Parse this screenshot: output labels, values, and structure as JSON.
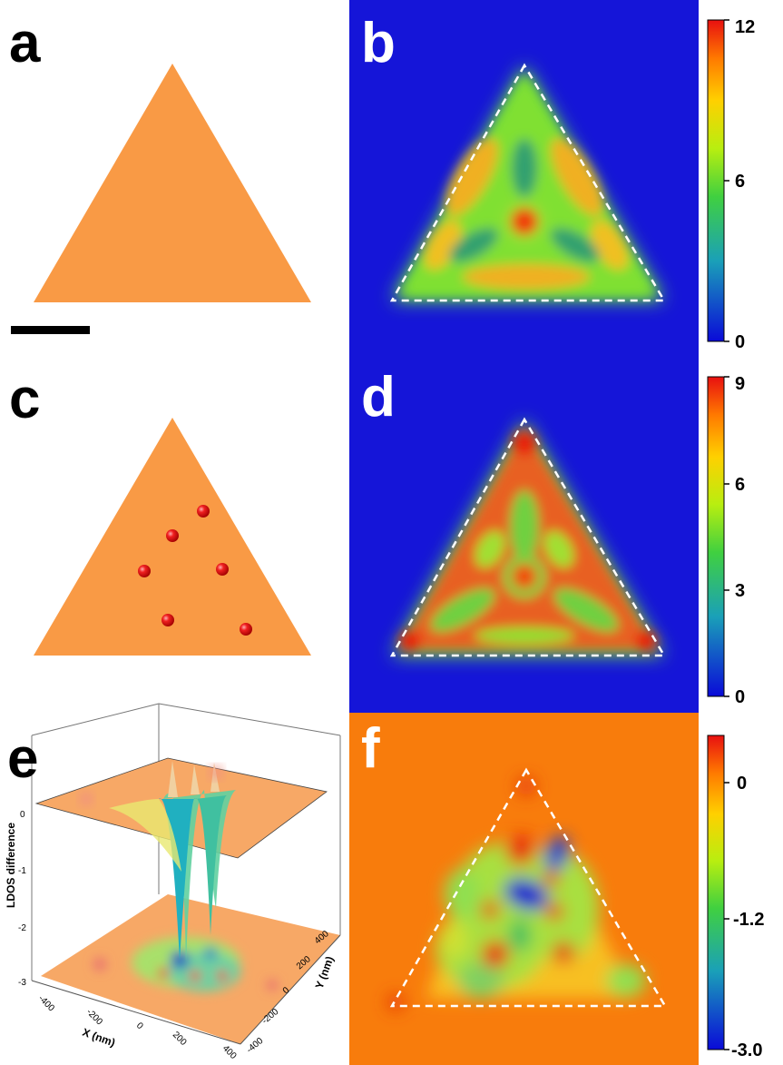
{
  "panels": {
    "a": {
      "label": "a"
    },
    "b": {
      "label": "b"
    },
    "c": {
      "label": "c"
    },
    "d": {
      "label": "d"
    },
    "e": {
      "label": "e"
    },
    "f": {
      "label": "f"
    }
  },
  "colorbars": {
    "b": {
      "ticks": [
        "12",
        "6",
        "0"
      ],
      "range": [
        0,
        12
      ]
    },
    "d": {
      "ticks": [
        "9",
        "6",
        "3",
        "0"
      ],
      "range": [
        0,
        9
      ]
    },
    "f": {
      "ticks": [
        "0",
        "-1.2",
        "-3.0"
      ],
      "range": [
        -3.0,
        0.5
      ]
    }
  },
  "panel_e": {
    "z_ticks": [
      "0",
      "-1",
      "-2",
      "-3"
    ],
    "z_label": "LDOS difference",
    "x_ticks": [
      "-400",
      "-200",
      "0",
      "200",
      "400"
    ],
    "x_label": "X (nm)",
    "y_ticks": [
      "400",
      "200",
      "0",
      "-200",
      "-400"
    ],
    "y_label": "Y (nm)"
  },
  "colors": {
    "triangle": "#f99a45",
    "map_bg_blue": "#1515d8",
    "map_bg_orange": "#f87c0c",
    "dashed_outline": "#ffffff",
    "dot": "#e81010"
  }
}
